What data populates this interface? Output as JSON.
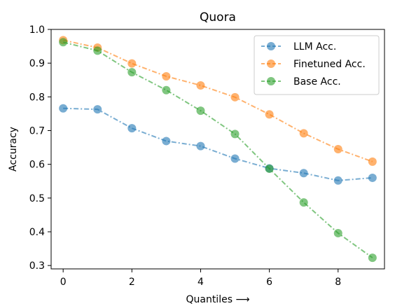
{
  "chart_data": {
    "type": "line",
    "title": "Quora",
    "xlabel": "Quantiles ⟶",
    "ylabel": "Accuracy",
    "xlim": [
      -0.35,
      9.35
    ],
    "ylim": [
      0.29,
      1.0
    ],
    "x_ticks": [
      0,
      2,
      4,
      6,
      8
    ],
    "x_tick_labels": [
      "0",
      "2",
      "4",
      "6",
      "8"
    ],
    "y_ticks": [
      0.3,
      0.4,
      0.5,
      0.6,
      0.7,
      0.8,
      0.9,
      1.0
    ],
    "y_tick_labels": [
      "0.3",
      "0.4",
      "0.5",
      "0.6",
      "0.7",
      "0.8",
      "0.9",
      "1.0"
    ],
    "grid": false,
    "legend_position": "top-right",
    "x": [
      0,
      1,
      2,
      3,
      4,
      5,
      6,
      7,
      8,
      9
    ],
    "series": [
      {
        "name": "LLM Acc.",
        "color": "#1f77b4",
        "values": [
          0.766,
          0.763,
          0.707,
          0.669,
          0.654,
          0.617,
          0.588,
          0.574,
          0.552,
          0.56
        ]
      },
      {
        "name": "Finetuned Acc.",
        "color": "#ff7f0e",
        "values": [
          0.968,
          0.946,
          0.899,
          0.861,
          0.834,
          0.799,
          0.748,
          0.692,
          0.645,
          0.608
        ]
      },
      {
        "name": "Base Acc.",
        "color": "#2ca02c",
        "values": [
          0.962,
          0.937,
          0.873,
          0.82,
          0.759,
          0.69,
          0.587,
          0.487,
          0.396,
          0.323
        ]
      }
    ]
  }
}
